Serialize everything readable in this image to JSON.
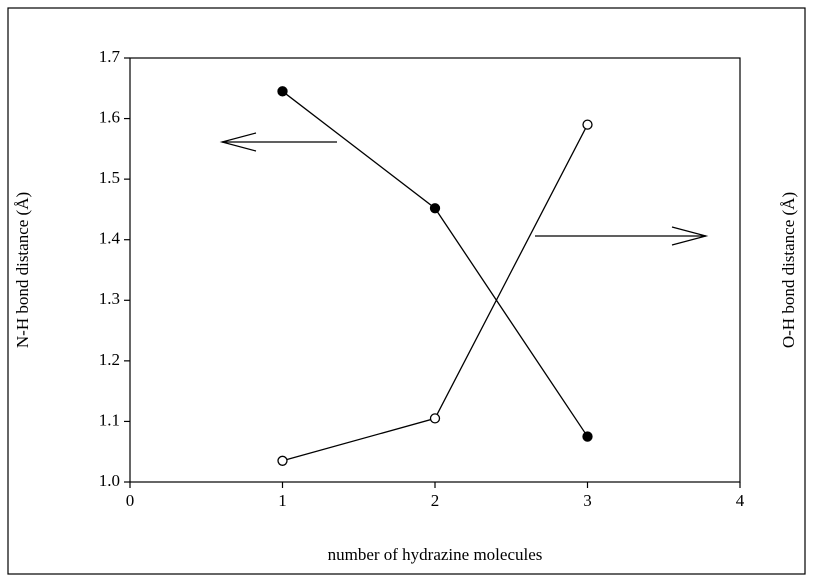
{
  "chart_data": {
    "type": "line",
    "xlabel": "number of hydrazine molecules",
    "ylabel": "N-H bond distance (Å)",
    "y2label": "O-H bond distance (Å)",
    "x": [
      1,
      2,
      3
    ],
    "series": [
      {
        "color": "#000000",
        "marker": "filled",
        "values": [
          1.645,
          1.452,
          1.075
        ]
      },
      {
        "color": "#000000",
        "marker": "open",
        "values": [
          1.035,
          1.105,
          1.59
        ]
      }
    ],
    "xlim": [
      0,
      4
    ],
    "xticks": [
      0,
      1,
      2,
      3,
      4
    ],
    "ylim": [
      1,
      1.7
    ],
    "yticks": [
      {
        "value": 1,
        "label": "1.0"
      },
      1.1,
      1.2,
      1.3,
      1.4,
      1.5,
      1.6,
      1.7
    ]
  }
}
